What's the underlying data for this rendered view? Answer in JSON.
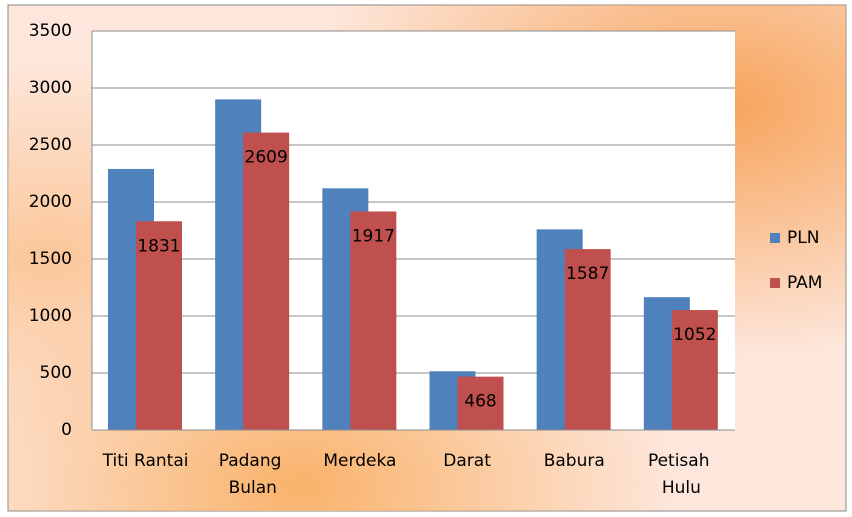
{
  "chart_data": {
    "type": "bar",
    "categories": [
      "Titi Rantai",
      "Padang Bulan",
      "Merdeka",
      "Darat",
      "Babura",
      "Petisah Hulu"
    ],
    "series": [
      {
        "name": "PLN",
        "color": "#4f81bd",
        "values": [
          2290,
          2900,
          2120,
          515,
          1760,
          1165
        ]
      },
      {
        "name": "PAM",
        "color": "#c0504d",
        "values": [
          1831,
          2609,
          1917,
          468,
          1587,
          1052
        ],
        "show_labels": true
      }
    ],
    "ylim": [
      0,
      3500
    ],
    "yticks": [
      0,
      500,
      1000,
      1500,
      2000,
      2500,
      3000,
      3500
    ],
    "grid": true,
    "legend": "right"
  }
}
